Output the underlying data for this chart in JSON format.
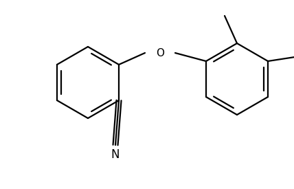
{
  "bg_color": "#ffffff",
  "line_color": "#000000",
  "lw": 1.6,
  "dbo": 0.012,
  "figsize": [
    4.28,
    2.75
  ],
  "dpi": 100,
  "r1cx": 0.195,
  "r1cy": 0.46,
  "r1r": 0.115,
  "r2cx": 0.6,
  "r2cy": 0.535,
  "r2r": 0.115
}
